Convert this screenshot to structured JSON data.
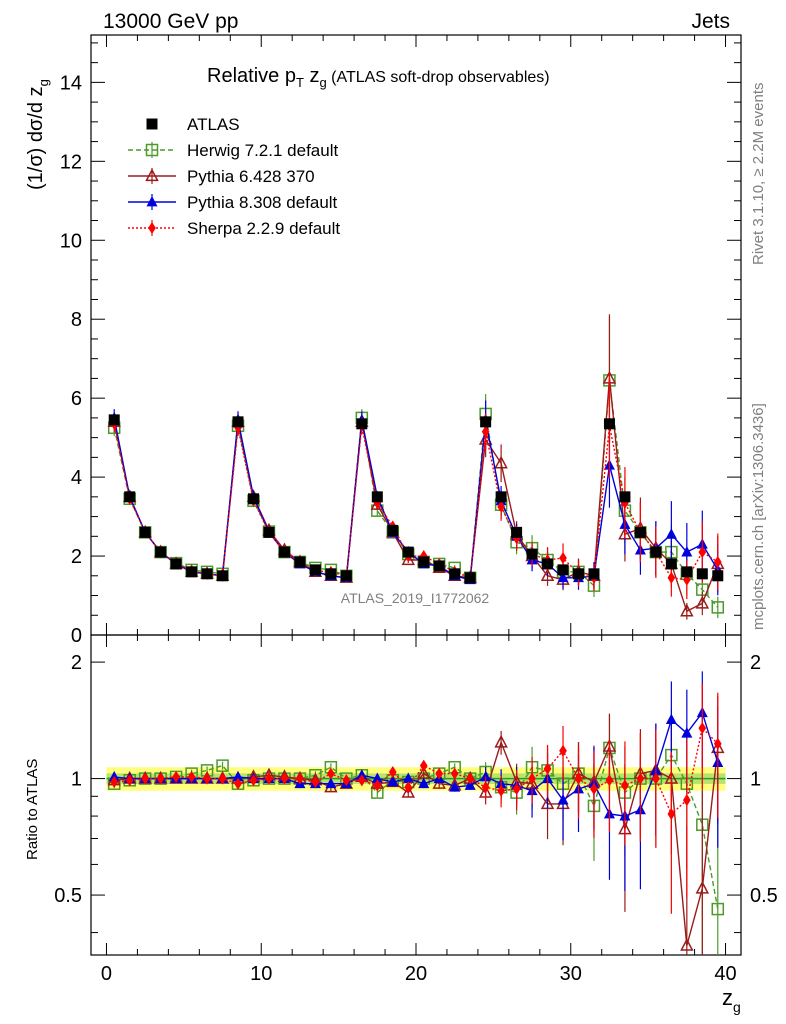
{
  "header": {
    "left": "13000 GeV pp",
    "right": "Jets"
  },
  "side_labels": {
    "rivet": "Rivet 3.1.10, ≥ 2.2M events",
    "mcplots": "mcplots.cern.ch [arXiv:1306.3436]"
  },
  "plot_title": {
    "main": "Relative p",
    "sub1": "T",
    "mid": " z",
    "sub2": "g",
    "tail": " (ATLAS soft-drop observables)"
  },
  "analysis_id": "ATLAS_2019_I1772062",
  "axes": {
    "ylabel_main": {
      "pre": "(1/σ) dσ/d z",
      "sub": "g"
    },
    "ylabel_ratio": "Ratio to ATLAS",
    "xlabel": {
      "main": "z",
      "sub": "g"
    }
  },
  "chart_data": [
    {
      "type": "scatter",
      "panel": "main",
      "title": "Relative pT zg (ATLAS soft-drop observables)",
      "xlim": [
        -1,
        41
      ],
      "ylim": [
        0,
        15.2
      ],
      "x_ticks": [
        0,
        10,
        20,
        30,
        40
      ],
      "y_ticks": [
        0,
        2,
        4,
        6,
        8,
        10,
        12,
        14
      ],
      "legend_position": "top-left",
      "x": [
        0.5,
        1.5,
        2.5,
        3.5,
        4.5,
        5.5,
        6.5,
        7.5,
        8.5,
        9.5,
        10.5,
        11.5,
        12.5,
        13.5,
        14.5,
        15.5,
        16.5,
        17.5,
        18.5,
        19.5,
        20.5,
        21.5,
        22.5,
        23.5,
        24.5,
        25.5,
        26.5,
        27.5,
        28.5,
        29.5,
        30.5,
        31.5,
        32.5,
        33.5,
        34.5,
        35.5,
        36.5,
        37.5,
        38.5,
        39.5
      ],
      "series": [
        {
          "name": "ATLAS",
          "color": "#000000",
          "marker": "filled-square",
          "line": "none",
          "values": [
            5.45,
            3.5,
            2.6,
            2.1,
            1.8,
            1.6,
            1.55,
            1.5,
            5.4,
            3.45,
            2.6,
            2.1,
            1.85,
            1.65,
            1.55,
            1.5,
            5.35,
            3.5,
            2.65,
            2.1,
            1.85,
            1.75,
            1.55,
            1.45,
            5.4,
            3.5,
            2.6,
            2.05,
            1.8,
            1.65,
            1.55,
            1.55,
            5.35,
            3.5,
            2.6,
            2.1,
            1.8,
            1.6,
            1.55,
            1.5
          ]
        },
        {
          "name": "Herwig 7.2.1 default",
          "color": "#4c9a2a",
          "marker": "open-square",
          "line": "dashed",
          "values": [
            5.25,
            3.45,
            2.6,
            2.1,
            1.82,
            1.65,
            1.6,
            1.55,
            5.3,
            3.4,
            2.62,
            2.1,
            1.85,
            1.7,
            1.65,
            1.5,
            5.5,
            3.15,
            2.6,
            2.05,
            1.85,
            1.8,
            1.7,
            1.45,
            5.6,
            3.3,
            2.35,
            2.2,
            1.9,
            1.6,
            1.6,
            1.25,
            6.45,
            3.15,
            2.6,
            2.1,
            2.1,
            1.55,
            1.15,
            0.7
          ]
        },
        {
          "name": "Pythia 6.428 370",
          "color": "#9b1b1b",
          "marker": "open-triangle",
          "line": "solid",
          "values": [
            5.4,
            3.5,
            2.6,
            2.1,
            1.8,
            1.6,
            1.55,
            1.5,
            5.4,
            3.5,
            2.65,
            2.15,
            1.85,
            1.6,
            1.5,
            1.45,
            5.4,
            3.3,
            2.6,
            1.9,
            1.9,
            1.7,
            1.5,
            1.45,
            4.95,
            4.35,
            2.55,
            2.0,
            1.5,
            1.4,
            1.6,
            1.5,
            6.5,
            2.55,
            2.7,
            2.2,
            1.8,
            0.6,
            0.8,
            1.8
          ]
        },
        {
          "name": "Pythia 8.308 default",
          "color": "#0000dd",
          "marker": "filled-triangle",
          "line": "solid",
          "values": [
            5.5,
            3.5,
            2.6,
            2.1,
            1.8,
            1.6,
            1.55,
            1.5,
            5.45,
            3.5,
            2.6,
            2.1,
            1.8,
            1.6,
            1.5,
            1.45,
            5.45,
            3.5,
            2.6,
            2.1,
            1.8,
            1.75,
            1.5,
            1.4,
            5.45,
            3.4,
            2.5,
            1.9,
            1.8,
            1.45,
            1.45,
            1.5,
            4.3,
            2.8,
            2.15,
            2.2,
            2.55,
            2.1,
            2.3,
            1.65
          ]
        },
        {
          "name": "Sherpa 2.2.9 default",
          "color": "#ff0000",
          "marker": "filled-diamond",
          "line": "dotted",
          "values": [
            5.35,
            3.45,
            2.6,
            2.1,
            1.82,
            1.62,
            1.55,
            1.5,
            5.25,
            3.4,
            2.6,
            2.1,
            1.85,
            1.62,
            1.6,
            1.48,
            5.3,
            3.35,
            2.75,
            2.0,
            2.0,
            1.8,
            1.6,
            1.45,
            5.15,
            3.25,
            2.45,
            2.05,
            1.9,
            1.95,
            1.55,
            1.45,
            5.3,
            3.35,
            2.6,
            2.1,
            1.45,
            1.4,
            2.1,
            1.85
          ]
        }
      ]
    },
    {
      "type": "scatter",
      "panel": "ratio",
      "ylabel": "Ratio to ATLAS",
      "xlabel": "zg",
      "xlim": [
        -1,
        41
      ],
      "ylim": [
        0.35,
        2.35
      ],
      "x_ticks": [
        0,
        10,
        20,
        30,
        40
      ],
      "y_ticks": [
        0.5,
        1,
        2
      ],
      "x": [
        0.5,
        1.5,
        2.5,
        3.5,
        4.5,
        5.5,
        6.5,
        7.5,
        8.5,
        9.5,
        10.5,
        11.5,
        12.5,
        13.5,
        14.5,
        15.5,
        16.5,
        17.5,
        18.5,
        19.5,
        20.5,
        21.5,
        22.5,
        23.5,
        24.5,
        25.5,
        26.5,
        27.5,
        28.5,
        29.5,
        30.5,
        31.5,
        32.5,
        33.5,
        34.5,
        35.5,
        36.5,
        37.5,
        38.5,
        39.5
      ],
      "series": [
        {
          "name": "Herwig 7.2.1 default",
          "color": "#4c9a2a",
          "values": [
            0.97,
            0.99,
            1.0,
            1.0,
            1.01,
            1.03,
            1.05,
            1.08,
            0.97,
            0.99,
            1.0,
            1.0,
            1.0,
            1.02,
            1.07,
            1.0,
            1.02,
            0.92,
            0.99,
            0.98,
            1.0,
            1.03,
            1.07,
            1.0,
            1.04,
            0.95,
            0.92,
            1.07,
            1.05,
            0.97,
            1.03,
            0.85,
            1.2,
            0.92,
            1.0,
            1.0,
            1.15,
            0.97,
            0.76,
            0.46
          ]
        },
        {
          "name": "Pythia 6.428 370",
          "color": "#9b1b1b",
          "values": [
            0.99,
            1.0,
            1.0,
            1.0,
            1.0,
            1.0,
            1.0,
            1.0,
            1.0,
            1.01,
            1.02,
            1.01,
            1.0,
            0.99,
            0.95,
            0.97,
            1.01,
            0.97,
            0.98,
            0.92,
            1.03,
            0.97,
            0.96,
            1.0,
            0.92,
            1.24,
            0.98,
            0.97,
            0.86,
            0.86,
            1.03,
            0.98,
            1.21,
            0.74,
            1.03,
            1.05,
            1.0,
            0.37,
            0.52,
            1.2
          ]
        },
        {
          "name": "Pythia 8.308 default",
          "color": "#0000dd",
          "values": [
            1.01,
            1.0,
            1.0,
            1.0,
            1.0,
            1.0,
            1.0,
            1.0,
            1.01,
            1.0,
            1.0,
            1.0,
            0.97,
            0.97,
            0.97,
            0.97,
            1.02,
            1.0,
            0.98,
            1.0,
            0.97,
            1.0,
            0.95,
            0.96,
            1.01,
            0.97,
            0.96,
            0.93,
            1.0,
            0.88,
            0.94,
            0.97,
            0.81,
            0.8,
            0.83,
            1.05,
            1.42,
            1.31,
            1.48,
            1.1
          ]
        },
        {
          "name": "Sherpa 2.2.9 default",
          "color": "#ff0000",
          "values": [
            0.98,
            0.99,
            1.0,
            1.0,
            1.01,
            1.01,
            1.0,
            1.0,
            0.97,
            0.99,
            1.0,
            1.0,
            1.0,
            0.98,
            1.03,
            0.99,
            0.99,
            0.96,
            1.04,
            0.95,
            1.08,
            1.03,
            1.03,
            1.0,
            0.95,
            0.93,
            0.94,
            1.0,
            1.06,
            1.18,
            1.0,
            0.94,
            0.99,
            0.96,
            1.0,
            1.0,
            0.81,
            0.88,
            1.35,
            1.23
          ]
        }
      ],
      "band": {
        "color_stat": "#3cb04a",
        "color_syst": "#ffff66",
        "width": 0.07
      }
    }
  ]
}
